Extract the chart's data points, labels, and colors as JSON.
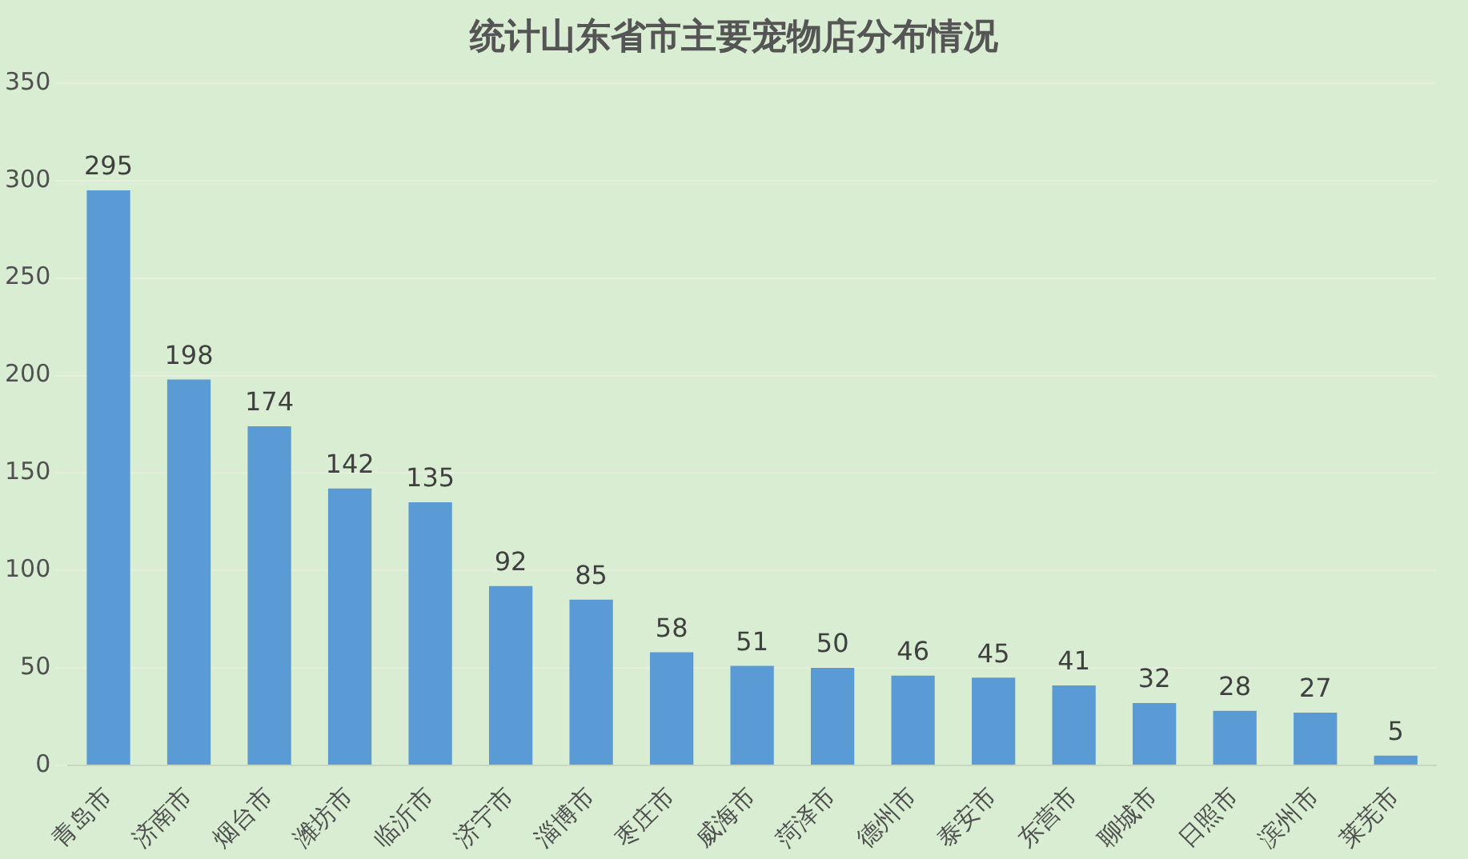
{
  "chart_data": {
    "type": "bar",
    "title": "统计山东省市主要宠物店分布情况",
    "categories": [
      "青岛市",
      "济南市",
      "烟台市",
      "潍坊市",
      "临沂市",
      "济宁市",
      "淄博市",
      "枣庄市",
      "威海市",
      "菏泽市",
      "德州市",
      "泰安市",
      "东营市",
      "聊城市",
      "日照市",
      "滨州市",
      "莱芜市"
    ],
    "values": [
      295,
      198,
      174,
      142,
      135,
      92,
      85,
      58,
      51,
      50,
      46,
      45,
      41,
      32,
      28,
      27,
      5
    ],
    "color": "#5b9bd5",
    "ylim": [
      0,
      350
    ],
    "yticks": [
      0,
      50,
      100,
      150,
      200,
      250,
      300,
      350
    ],
    "grid": "y",
    "data_labels": true,
    "legend": false
  }
}
